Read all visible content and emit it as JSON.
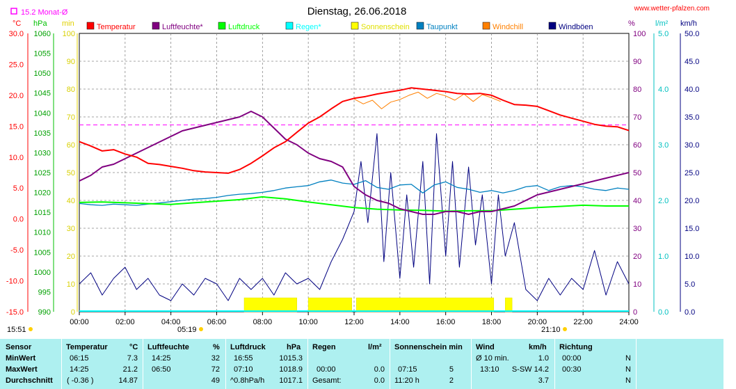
{
  "header": {
    "title": "Dienstag, 26.06.2018",
    "website": "www.wetter-pfalzen.com",
    "monthly_avg": "15.2 Monat-Ø",
    "sunrise": "05:19",
    "sunset": "21:10",
    "moonrise": "15:51"
  },
  "axes": {
    "temp_unit": "°C",
    "pressure_unit": "hPa",
    "minutes_unit": "min",
    "percent_unit": "%",
    "rain_unit": "l/m²",
    "wind_unit": "km/h",
    "temp_ticks": [
      "30.0",
      "25.0",
      "20.0",
      "15.0",
      "10.0",
      "5.0",
      "0.0",
      "-5.0",
      "-10.0",
      "-15.0"
    ],
    "pressure_ticks": [
      "1060",
      "1055",
      "1050",
      "1045",
      "1040",
      "1035",
      "1030",
      "1025",
      "1020",
      "1015",
      "1010",
      "1005",
      "1000",
      "995",
      "990"
    ],
    "minutes_ticks": [
      "100",
      "90",
      "80",
      "70",
      "60",
      "50",
      "40",
      "30",
      "20",
      "10",
      "0"
    ],
    "percent_ticks": [
      "100",
      "90",
      "80",
      "70",
      "60",
      "50",
      "40",
      "30",
      "20",
      "10",
      "0"
    ],
    "rain_ticks": [
      "5.0",
      "4.0",
      "3.0",
      "2.0",
      "1.0",
      "0.0"
    ],
    "wind_ticks": [
      "50.0",
      "45.0",
      "40.0",
      "35.0",
      "30.0",
      "25.0",
      "20.0",
      "15.0",
      "10.0",
      "5.0",
      "0.0"
    ],
    "time_ticks": [
      "00:00",
      "02:00",
      "04:00",
      "06:00",
      "08:00",
      "10:00",
      "12:00",
      "14:00",
      "16:00",
      "18:00",
      "20:00",
      "22:00",
      "24:00"
    ]
  },
  "legend": [
    {
      "label": "Temperatur",
      "color": "#ff0000"
    },
    {
      "label": "Luftfeuchte*",
      "color": "#800080"
    },
    {
      "label": "Luftdruck",
      "color": "#00ff00"
    },
    {
      "label": "Regen*",
      "color": "#00ffff"
    },
    {
      "label": "Sonnenschein",
      "color": "#ffff00"
    },
    {
      "label": "Taupunkt",
      "color": "#0080c0"
    },
    {
      "label": "Windchill",
      "color": "#ff8000"
    },
    {
      "label": "Windböen",
      "color": "#000080"
    }
  ],
  "chart_data": {
    "type": "line",
    "x_unit": "hours",
    "xlim": [
      0,
      24
    ],
    "monthly_avg_temp": 15.2,
    "series": [
      {
        "name": "Temperatur",
        "axis": "°C",
        "ylim": [
          -15,
          30
        ],
        "x": [
          0,
          0.5,
          1,
          1.5,
          2,
          2.5,
          3,
          3.5,
          4,
          4.5,
          5,
          5.5,
          6,
          6.5,
          7,
          7.5,
          8,
          8.5,
          9,
          9.5,
          10,
          10.5,
          11,
          11.5,
          12,
          12.5,
          13,
          13.5,
          14,
          14.5,
          15,
          15.5,
          16,
          16.5,
          17,
          17.5,
          18,
          18.5,
          19,
          19.5,
          20,
          20.5,
          21,
          21.5,
          22,
          22.5,
          23,
          23.5,
          24
        ],
        "values": [
          12.5,
          11.8,
          11.0,
          11.2,
          10.5,
          10.0,
          9.0,
          8.8,
          8.5,
          8.2,
          7.8,
          7.6,
          7.5,
          7.4,
          8.0,
          9.0,
          10.2,
          11.5,
          12.5,
          14.0,
          15.5,
          16.5,
          17.8,
          19.0,
          19.5,
          19.8,
          20.2,
          20.5,
          20.8,
          21.2,
          21.0,
          20.8,
          20.6,
          20.3,
          20.2,
          20.3,
          20.0,
          19.2,
          18.5,
          18.4,
          18.2,
          17.5,
          16.8,
          16.3,
          15.8,
          15.3,
          15.0,
          14.9,
          14.3
        ]
      },
      {
        "name": "Luftfeuchte*",
        "axis": "%",
        "ylim": [
          0,
          100
        ],
        "x": [
          0,
          0.5,
          1,
          1.5,
          2,
          2.5,
          3,
          3.5,
          4,
          4.5,
          5,
          5.5,
          6,
          6.5,
          7,
          7.5,
          8,
          8.5,
          9,
          9.5,
          10,
          10.5,
          11,
          11.5,
          12,
          12.5,
          13,
          13.5,
          14,
          14.5,
          15,
          15.5,
          16,
          16.5,
          17,
          17.5,
          18,
          18.5,
          19,
          19.5,
          20,
          20.5,
          21,
          21.5,
          22,
          22.5,
          23,
          23.5,
          24
        ],
        "values": [
          47,
          49,
          52,
          53,
          55,
          57,
          59,
          61,
          63,
          65,
          66,
          67,
          68,
          69,
          70,
          72,
          70,
          66,
          62,
          60,
          57,
          55,
          54,
          52,
          45,
          42,
          40,
          39,
          37,
          36,
          35,
          35,
          36,
          36,
          35,
          36,
          36,
          37,
          38,
          40,
          42,
          43,
          44,
          45,
          46,
          47,
          48,
          49,
          50
        ]
      },
      {
        "name": "Luftdruck",
        "axis": "hPa",
        "ylim": [
          990,
          1060
        ],
        "x": [
          0,
          1,
          2,
          3,
          4,
          5,
          6,
          7,
          8,
          9,
          10,
          11,
          12,
          13,
          14,
          15,
          16,
          17,
          18,
          19,
          20,
          21,
          22,
          23,
          24
        ],
        "values": [
          1017.5,
          1017.6,
          1017.4,
          1017.2,
          1017.0,
          1017.4,
          1017.8,
          1018.2,
          1018.9,
          1018.4,
          1017.6,
          1016.9,
          1016.2,
          1015.8,
          1015.6,
          1015.5,
          1015.3,
          1015.4,
          1015.4,
          1015.8,
          1016.2,
          1016.5,
          1016.8,
          1016.6,
          1016.6
        ]
      },
      {
        "name": "Taupunkt",
        "axis": "°C",
        "ylim": [
          -15,
          30
        ],
        "x": [
          0,
          0.5,
          1,
          1.5,
          2,
          2.5,
          3,
          3.5,
          4,
          4.5,
          5,
          5.5,
          6,
          6.5,
          7,
          7.5,
          8,
          8.5,
          9,
          9.5,
          10,
          10.5,
          11,
          11.5,
          12,
          12.5,
          13,
          13.5,
          14,
          14.5,
          15,
          15.5,
          16,
          16.5,
          17,
          17.5,
          18,
          18.5,
          19,
          19.5,
          20,
          20.5,
          21,
          21.5,
          22,
          22.5,
          23,
          23.5,
          24
        ],
        "values": [
          2.5,
          2.3,
          2.2,
          2.4,
          2.3,
          2.2,
          2.4,
          2.6,
          2.8,
          3.0,
          3.2,
          3.3,
          3.5,
          3.8,
          4.0,
          4.1,
          4.3,
          4.6,
          5.0,
          5.2,
          5.4,
          6.0,
          6.3,
          5.8,
          5.6,
          6.2,
          5.1,
          4.8,
          5.5,
          5.6,
          4.2,
          5.5,
          6.0,
          5.1,
          4.8,
          4.3,
          4.6,
          4.2,
          4.6,
          5.2,
          5.4,
          4.6,
          5.2,
          5.4,
          5.2,
          4.8,
          4.6,
          5.0,
          4.8
        ]
      },
      {
        "name": "Windchill",
        "axis": "°C",
        "ylim": [
          -15,
          30
        ],
        "x": [
          12,
          12.4,
          12.8,
          13.2,
          13.6,
          14,
          14.4,
          14.8,
          15.2,
          15.6,
          16,
          16.4,
          16.8,
          17.2,
          17.6,
          18,
          18.4
        ],
        "values": [
          19.4,
          18.6,
          19.2,
          17.8,
          18.9,
          19.3,
          20.0,
          20.5,
          19.5,
          20.3,
          19.9,
          19.2,
          20.2,
          19.0,
          20.1,
          19.6,
          19.0
        ]
      },
      {
        "name": "Windböen",
        "axis": "km/h",
        "ylim": [
          0,
          50
        ],
        "x": [
          0,
          0.5,
          1,
          1.5,
          2,
          2.5,
          3,
          3.5,
          4,
          4.5,
          5,
          5.5,
          6,
          6.5,
          7,
          7.5,
          8,
          8.5,
          9,
          9.5,
          10,
          10.5,
          11,
          11.5,
          12,
          12.3,
          12.6,
          13,
          13.3,
          13.6,
          14,
          14.3,
          14.6,
          15,
          15.3,
          15.6,
          16,
          16.3,
          16.6,
          17,
          17.3,
          17.6,
          18,
          18.3,
          18.6,
          19,
          19.5,
          20,
          20.5,
          21,
          21.5,
          22,
          22.5,
          23,
          23.5,
          24
        ],
        "values": [
          5,
          7,
          3,
          6,
          8,
          4,
          6,
          3,
          2,
          5,
          3,
          6,
          5,
          2,
          6,
          4,
          6,
          3,
          7,
          5,
          6,
          4,
          9,
          13,
          18,
          27,
          16,
          32,
          9,
          25,
          6,
          21,
          8,
          27,
          5,
          32,
          10,
          27,
          8,
          26,
          12,
          21,
          5,
          21,
          10,
          16,
          4,
          2,
          6,
          3,
          6,
          4,
          11,
          3,
          9,
          5
        ]
      },
      {
        "name": "Sonnenschein",
        "axis": "min",
        "ylim": [
          0,
          100
        ],
        "x": [
          7.2,
          9.5,
          10,
          11.9,
          12.1,
          18.1,
          18.6,
          18.9,
          19.9
        ],
        "values": [
          5,
          5,
          5,
          5,
          5,
          5,
          5,
          5,
          5
        ]
      }
    ]
  },
  "stats": {
    "headers": {
      "sensor": "Sensor",
      "temperatur": "Temperatur",
      "temp_unit": "°C",
      "luftfeuchte": "Luftfeuchte",
      "humid_unit": "%",
      "luftdruck": "Luftdruck",
      "press_unit": "hPa",
      "regen": "Regen",
      "rain_unit": "l/m²",
      "sonne": "Sonnenschein min",
      "wind": "Wind",
      "wind_unit": "km/h",
      "richtung": "Richtung"
    },
    "min": {
      "label": "MinWert",
      "temp_time": "06:15",
      "temp": "7.3",
      "hum_time": "14:25",
      "hum": "32",
      "press_time": "16:55",
      "press": "1015.3",
      "rain_time": "",
      "rain": "",
      "sun_time": "",
      "sun": "",
      "wind_time": "Ø 10 min.",
      "wind": "1.0",
      "dir_time": "00:00",
      "dir": "N"
    },
    "max": {
      "label": "MaxWert",
      "temp_time": "14:25",
      "temp": "21.2",
      "hum_time": "06:50",
      "hum": "72",
      "press_time": "07:10",
      "press": "1018.9",
      "rain_time": "00:00",
      "rain": "0.0",
      "sun_time": "07:15",
      "sun": "5",
      "wind_time": "13:10",
      "wind": "S-SW 14.2",
      "dir_time": "00:30",
      "dir": "N"
    },
    "avg": {
      "label": "Durchschnitt",
      "temp_time": "( -0.36 )",
      "temp": "14.87",
      "hum_time": "",
      "hum": "49",
      "press_time": "^0.8hPa/h",
      "press": "1017.1",
      "rain_time": "Gesamt:",
      "rain": "0.0",
      "sun_time": "11:20 h",
      "sun": "2",
      "wind_time": "",
      "wind": "3.7",
      "dir_time": "",
      "dir": "N"
    }
  }
}
